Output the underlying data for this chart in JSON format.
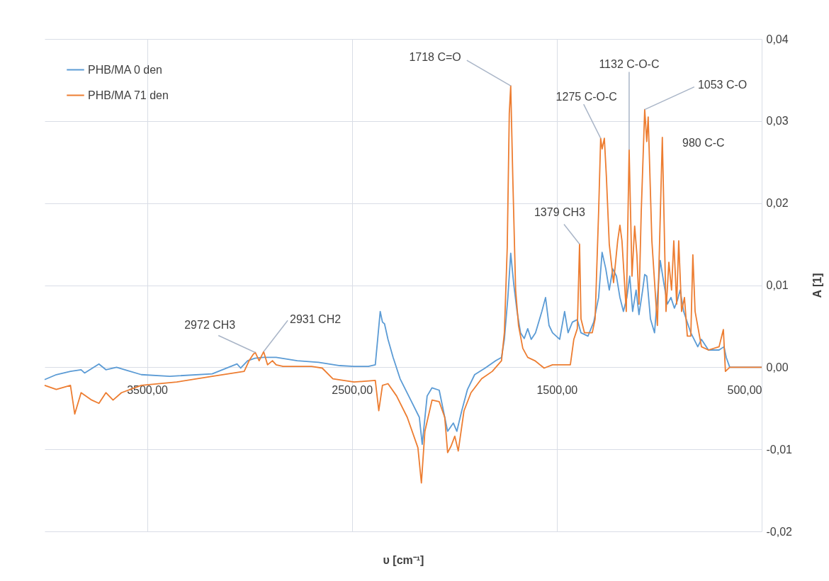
{
  "chart_data": {
    "type": "line",
    "xlabel": "υ [cm⁻¹]",
    "ylabel": "A [1]",
    "xlim": [
      4000,
      500
    ],
    "ylim": [
      -0.02,
      0.04
    ],
    "xticks": [
      {
        "value": 3500,
        "label": "3500,00"
      },
      {
        "value": 2500,
        "label": "2500,00"
      },
      {
        "value": 1500,
        "label": "1500,00"
      },
      {
        "value": 500,
        "label": "500,00"
      }
    ],
    "yticks": [
      {
        "value": -0.02,
        "label": "-0,02"
      },
      {
        "value": -0.01,
        "label": "-0,01"
      },
      {
        "value": 0,
        "label": "0,00"
      },
      {
        "value": 0.01,
        "label": "0,01"
      },
      {
        "value": 0.02,
        "label": "0,02"
      },
      {
        "value": 0.03,
        "label": "0,03"
      },
      {
        "value": 0.04,
        "label": "0,04"
      }
    ],
    "grid": true,
    "legend": "top left",
    "marker": "none",
    "line_style": "solid",
    "annotations": [
      {
        "text": "1718 C=O",
        "x": 1725,
        "y": 0.0343
      },
      {
        "text": "1275 C-O-C",
        "x": 1286,
        "y": 0.0279
      },
      {
        "text": "1132 C-O-C",
        "x": 1147,
        "y": 0.0265
      },
      {
        "text": "1053 C-O",
        "x": 1071,
        "y": 0.0314
      },
      {
        "text": "980 C-C",
        "x": 985,
        "y": 0.028
      },
      {
        "text": "1379  CH3",
        "x": 1389,
        "y": 0.015
      },
      {
        "text": "2972 CH3",
        "x": 2972,
        "y": 0.0018
      },
      {
        "text": "2931 CH2",
        "x": 2931,
        "y": 0.0019
      }
    ],
    "series": [
      {
        "name": "PHB/MA 0 den",
        "color": "#5b9bd5",
        "x": [
          4000,
          3943,
          3874,
          3822,
          3805,
          3735,
          3701,
          3649,
          3597,
          3528,
          3389,
          3182,
          3061,
          3043,
          3009,
          2974,
          2933,
          2870,
          2767,
          2663,
          2559,
          2490,
          2420,
          2386,
          2362,
          2351,
          2341,
          2324,
          2299,
          2265,
          2213,
          2171,
          2157,
          2133,
          2109,
          2074,
          2047,
          2033,
          2005,
          1988,
          1964,
          1936,
          1901,
          1850,
          1798,
          1770,
          1756,
          1739,
          1725,
          1711,
          1694,
          1677,
          1659,
          1642,
          1625,
          1604,
          1573,
          1555,
          1538,
          1521,
          1486,
          1462,
          1445,
          1424,
          1400,
          1382,
          1348,
          1320,
          1296,
          1279,
          1261,
          1244,
          1227,
          1209,
          1192,
          1175,
          1158,
          1144,
          1130,
          1113,
          1099,
          1081,
          1071,
          1061,
          1043,
          1023,
          995,
          978,
          960,
          943,
          926,
          912,
          898,
          881,
          846,
          812,
          794,
          760,
          708,
          684,
          673,
          656,
          500
        ],
        "values": [
          -0.0015,
          -0.0009,
          -0.0005,
          -0.0003,
          -0.0007,
          0.0004,
          -0.0003,
          0,
          -0.0004,
          -0.0009,
          -0.0011,
          -0.0008,
          0.0004,
          -0.0001,
          0.0008,
          0.0011,
          0.0012,
          0.0012,
          0.0008,
          0.0006,
          0.0002,
          0.0001,
          0.0001,
          0.0003,
          0.0068,
          0.0055,
          0.0053,
          0.0034,
          0.0012,
          -0.0014,
          -0.004,
          -0.0061,
          -0.0094,
          -0.0035,
          -0.0025,
          -0.0028,
          -0.0061,
          -0.0078,
          -0.0068,
          -0.0078,
          -0.0053,
          -0.0027,
          -0.0009,
          -0.0001,
          0.0008,
          0.0012,
          0.0034,
          0.0085,
          0.0139,
          0.0103,
          0.0068,
          0.0042,
          0.0035,
          0.0047,
          0.0034,
          0.0042,
          0.0068,
          0.0085,
          0.0051,
          0.0042,
          0.0034,
          0.0068,
          0.0042,
          0.0055,
          0.0058,
          0.0042,
          0.0038,
          0.0055,
          0.0085,
          0.014,
          0.012,
          0.0094,
          0.012,
          0.0111,
          0.0085,
          0.0068,
          0.0085,
          0.0111,
          0.0068,
          0.0094,
          0.0064,
          0.0094,
          0.0113,
          0.0111,
          0.0059,
          0.0042,
          0.013,
          0.0103,
          0.0077,
          0.0085,
          0.0072,
          0.0081,
          0.0094,
          0.0068,
          0.0042,
          0.0025,
          0.0034,
          0.0021,
          0.0021,
          0.0025,
          0.0012,
          0,
          0
        ]
      },
      {
        "name": "PHB/MA 71 den",
        "color": "#ed7d31",
        "x": [
          4000,
          3943,
          3874,
          3853,
          3822,
          3770,
          3735,
          3701,
          3666,
          3625,
          3528,
          3355,
          3182,
          3026,
          3002,
          2981,
          2972,
          2953,
          2931,
          2912,
          2888,
          2870,
          2836,
          2697,
          2645,
          2593,
          2490,
          2386,
          2369,
          2351,
          2324,
          2282,
          2230,
          2178,
          2161,
          2144,
          2109,
          2074,
          2047,
          2033,
          2016,
          1998,
          1981,
          1953,
          1919,
          1867,
          1815,
          1770,
          1756,
          1742,
          1732,
          1725,
          1715,
          1701,
          1687,
          1666,
          1642,
          1607,
          1562,
          1521,
          1469,
          1434,
          1417,
          1400,
          1389,
          1382,
          1365,
          1348,
          1327,
          1313,
          1296,
          1286,
          1279,
          1268,
          1258,
          1244,
          1223,
          1203,
          1192,
          1182,
          1161,
          1147,
          1133,
          1120,
          1109,
          1099,
          1088,
          1071,
          1061,
          1054,
          1036,
          1009,
          985,
          967,
          953,
          940,
          929,
          915,
          905,
          891,
          877,
          863,
          846,
          836,
          825,
          794,
          760,
          708,
          687,
          677,
          656,
          500
        ],
        "values": [
          -0.0022,
          -0.0027,
          -0.0022,
          -0.0057,
          -0.0031,
          -0.004,
          -0.0044,
          -0.0031,
          -0.004,
          -0.0031,
          -0.0022,
          -0.0018,
          -0.0011,
          -0.0005,
          0.0008,
          0.0016,
          0.0018,
          0.0008,
          0.0019,
          0.0003,
          0.0008,
          0.0003,
          0.0001,
          0.0001,
          -0.0001,
          -0.0014,
          -0.0018,
          -0.0016,
          -0.0053,
          -0.0022,
          -0.002,
          -0.0035,
          -0.0061,
          -0.0098,
          -0.0141,
          -0.0078,
          -0.004,
          -0.0042,
          -0.0061,
          -0.0104,
          -0.0096,
          -0.0084,
          -0.0102,
          -0.0053,
          -0.0031,
          -0.0014,
          -0.0005,
          0.0008,
          0.0042,
          0.0146,
          0.0309,
          0.0343,
          0.0232,
          0.0094,
          0.0051,
          0.0023,
          0.0012,
          0.0008,
          -0.0001,
          0.0003,
          0.0003,
          0.0003,
          0.0034,
          0.0047,
          0.015,
          0.0059,
          0.0042,
          0.0042,
          0.0042,
          0.0059,
          0.0189,
          0.0279,
          0.0266,
          0.0279,
          0.0232,
          0.015,
          0.0103,
          0.0154,
          0.0173,
          0.0154,
          0.0068,
          0.0265,
          0.0111,
          0.0172,
          0.0137,
          0.0077,
          0.0189,
          0.0314,
          0.0275,
          0.0305,
          0.0154,
          0.0051,
          0.028,
          0.0068,
          0.0128,
          0.0094,
          0.0154,
          0.0077,
          0.0154,
          0.0068,
          0.0085,
          0.0038,
          0.0038,
          0.0137,
          0.0068,
          0.0025,
          0.0021,
          0.0025,
          0.0046,
          -0.0005,
          0,
          0
        ]
      }
    ]
  }
}
